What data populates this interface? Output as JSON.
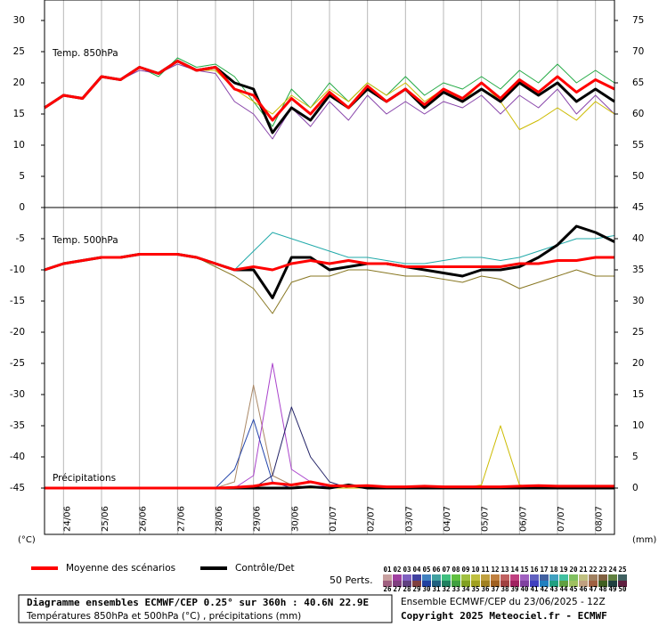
{
  "chart_data": {
    "type": "line",
    "annotations": [
      "Temp. 850hPa",
      "Temp. 500hPa",
      "Précipitations"
    ],
    "y_unit": "(°C)",
    "y2_unit": "(mm)",
    "x": [
      0,
      12,
      24,
      36,
      48,
      60,
      72,
      84,
      96,
      108,
      120,
      132,
      144,
      156,
      168,
      180,
      192,
      204,
      216,
      228,
      240,
      252,
      264,
      276,
      288,
      300,
      312,
      324,
      336,
      348,
      360
    ],
    "xlim": [
      0,
      360
    ],
    "xticks": [
      {
        "value": 12,
        "label": "24/06"
      },
      {
        "value": 36,
        "label": "25/06"
      },
      {
        "value": 60,
        "label": "26/06"
      },
      {
        "value": 84,
        "label": "27/06"
      },
      {
        "value": 108,
        "label": "28/06"
      },
      {
        "value": 132,
        "label": "29/06"
      },
      {
        "value": 156,
        "label": "30/06"
      },
      {
        "value": 180,
        "label": "01/07"
      },
      {
        "value": 204,
        "label": "02/07"
      },
      {
        "value": 228,
        "label": "03/07"
      },
      {
        "value": 252,
        "label": "04/07"
      },
      {
        "value": 276,
        "label": "05/07"
      },
      {
        "value": 300,
        "label": "06/07"
      },
      {
        "value": 324,
        "label": "07/07"
      },
      {
        "value": 348,
        "label": "08/07"
      }
    ],
    "ylim": [
      -52,
      33
    ],
    "yticks": [
      30,
      25,
      20,
      15,
      10,
      5,
      0,
      -5,
      -10,
      -15,
      -20,
      -25,
      -30,
      -35,
      -40,
      -45
    ],
    "y2lim": [
      -7,
      78
    ],
    "y2ticks": [
      75,
      70,
      65,
      60,
      55,
      50,
      45,
      40,
      35,
      30,
      25,
      20,
      15,
      10,
      5,
      0
    ],
    "grid": true,
    "legend": [
      {
        "name": "Moyenne des scénarios",
        "color": "#ff0000"
      },
      {
        "name": "Contrôle/Det",
        "color": "#000000"
      }
    ],
    "members_label": "50 Perts.",
    "members": [
      {
        "name": "01",
        "color": "#c8a0a0"
      },
      {
        "name": "02",
        "color": "#a040a0"
      },
      {
        "name": "03",
        "color": "#8060c0"
      },
      {
        "name": "04",
        "color": "#4040a0"
      },
      {
        "name": "05",
        "color": "#4080c0"
      },
      {
        "name": "06",
        "color": "#40a0a0"
      },
      {
        "name": "07",
        "color": "#40c080"
      },
      {
        "name": "08",
        "color": "#60c040"
      },
      {
        "name": "09",
        "color": "#a0c040"
      },
      {
        "name": "10",
        "color": "#c0c040"
      },
      {
        "name": "11",
        "color": "#c0a040"
      },
      {
        "name": "12",
        "color": "#c08040"
      },
      {
        "name": "13",
        "color": "#c06060"
      },
      {
        "name": "14",
        "color": "#c04080"
      },
      {
        "name": "15",
        "color": "#a060c0"
      },
      {
        "name": "16",
        "color": "#6060c0"
      },
      {
        "name": "17",
        "color": "#4060a0"
      },
      {
        "name": "18",
        "color": "#40a0c0"
      },
      {
        "name": "19",
        "color": "#40c0a0"
      },
      {
        "name": "20",
        "color": "#80c060"
      },
      {
        "name": "21",
        "color": "#c0c080"
      },
      {
        "name": "22",
        "color": "#a08060"
      },
      {
        "name": "23",
        "color": "#806040"
      },
      {
        "name": "24",
        "color": "#608040"
      },
      {
        "name": "25",
        "color": "#406060"
      },
      {
        "name": "26",
        "color": "#a06080"
      },
      {
        "name": "27",
        "color": "#804080"
      },
      {
        "name": "28",
        "color": "#604080"
      },
      {
        "name": "29",
        "color": "#804040"
      },
      {
        "name": "30",
        "color": "#2040a0"
      },
      {
        "name": "31",
        "color": "#206080"
      },
      {
        "name": "32",
        "color": "#208060"
      },
      {
        "name": "33",
        "color": "#40a040"
      },
      {
        "name": "34",
        "color": "#80a020"
      },
      {
        "name": "35",
        "color": "#a0a020"
      },
      {
        "name": "36",
        "color": "#a08020"
      },
      {
        "name": "37",
        "color": "#a06020"
      },
      {
        "name": "38",
        "color": "#a04040"
      },
      {
        "name": "39",
        "color": "#a02060"
      },
      {
        "name": "40",
        "color": "#8040a0"
      },
      {
        "name": "41",
        "color": "#4040c0"
      },
      {
        "name": "42",
        "color": "#2080c0"
      },
      {
        "name": "43",
        "color": "#20a080"
      },
      {
        "name": "44",
        "color": "#60a040"
      },
      {
        "name": "45",
        "color": "#a0c060"
      },
      {
        "name": "46",
        "color": "#c0a080"
      },
      {
        "name": "47",
        "color": "#a06040"
      },
      {
        "name": "48",
        "color": "#406020"
      },
      {
        "name": "49",
        "color": "#204040"
      },
      {
        "name": "50",
        "color": "#602040"
      }
    ],
    "series": [
      {
        "color": "#22aa44",
        "width": 1,
        "values": [
          16,
          18,
          17.5,
          21,
          20.5,
          22.5,
          21,
          24,
          22.5,
          23,
          21,
          17,
          13,
          19,
          16,
          20,
          17,
          20,
          18,
          21,
          18,
          20,
          19,
          21,
          19,
          22,
          20,
          23,
          20,
          22,
          20
        ]
      },
      {
        "color": "#8844aa",
        "width": 1,
        "values": [
          16,
          18,
          17.5,
          21,
          20.5,
          22,
          21.5,
          23,
          22,
          21.5,
          17,
          15,
          11,
          16,
          13,
          17,
          14,
          18,
          15,
          17,
          15,
          17,
          16,
          18,
          15,
          18,
          16,
          19,
          15,
          18,
          15
        ]
      },
      {
        "color": "#ccbb00",
        "width": 1,
        "values": [
          16,
          18,
          17.5,
          21,
          20.5,
          22.5,
          21.5,
          23.5,
          22,
          22,
          19,
          17,
          15,
          18,
          16,
          19,
          17,
          20,
          18,
          20,
          17,
          19,
          17,
          20,
          17,
          12.5,
          14,
          16,
          14,
          17,
          15
        ]
      },
      {
        "color": "#000000",
        "width": 3,
        "values": [
          16,
          18,
          17.5,
          21,
          20.5,
          22.5,
          21.5,
          23.5,
          22,
          22.5,
          20,
          19,
          12,
          16,
          14,
          18,
          16,
          19,
          17,
          19,
          16,
          18.5,
          17,
          19,
          17,
          20,
          18,
          20,
          17,
          19,
          17
        ]
      },
      {
        "color": "#ff0000",
        "width": 3,
        "values": [
          16,
          18,
          17.5,
          21,
          20.5,
          22.5,
          21.5,
          23.5,
          22,
          22.5,
          19,
          18,
          14,
          17.5,
          15,
          18.5,
          16,
          19.5,
          17,
          19,
          16.5,
          19,
          17.5,
          20,
          17.5,
          20.5,
          18.5,
          21,
          18.5,
          20.5,
          19
        ]
      },
      {
        "color": "#22aaaa",
        "width": 1,
        "values": [
          -10,
          -9,
          -8.5,
          -8,
          -8,
          -7.5,
          -7.5,
          -7.5,
          -8,
          -9,
          -10,
          -7,
          -4,
          -5,
          -6,
          -7,
          -8,
          -8,
          -8.5,
          -9,
          -9,
          -8.5,
          -8,
          -8,
          -8.5,
          -8,
          -7,
          -6,
          -5,
          -5,
          -4.5
        ]
      },
      {
        "color": "#887722",
        "width": 1,
        "values": [
          -10,
          -9,
          -8.5,
          -8,
          -8,
          -7.5,
          -7.5,
          -7.5,
          -8,
          -9.5,
          -11,
          -13,
          -17,
          -12,
          -11,
          -11,
          -10,
          -10,
          -10.5,
          -11,
          -11,
          -11.5,
          -12,
          -11,
          -11.5,
          -13,
          -12,
          -11,
          -10,
          -11,
          -11
        ]
      },
      {
        "color": "#000000",
        "width": 3,
        "values": [
          -10,
          -9,
          -8.5,
          -8,
          -8,
          -7.5,
          -7.5,
          -7.5,
          -8,
          -9,
          -10,
          -10,
          -14.5,
          -8,
          -8,
          -10,
          -9.5,
          -9,
          -9,
          -9.5,
          -10,
          -10.5,
          -11,
          -10,
          -10,
          -9.5,
          -8,
          -6,
          -3,
          -4,
          -5.5
        ]
      },
      {
        "color": "#ff0000",
        "width": 3,
        "values": [
          -10,
          -9,
          -8.5,
          -8,
          -8,
          -7.5,
          -7.5,
          -7.5,
          -8,
          -9,
          -10,
          -9.5,
          -10,
          -9,
          -8.5,
          -9,
          -8.5,
          -9,
          -9,
          -9.5,
          -9.5,
          -9.5,
          -9.5,
          -9.5,
          -9.5,
          -9,
          -9,
          -8.5,
          -8.5,
          -8,
          -8
        ]
      },
      {
        "color": "#aa8866",
        "width": 1,
        "axis": "y2",
        "values": [
          0,
          0,
          0,
          0,
          0,
          0,
          0,
          0,
          0,
          0,
          1,
          16.5,
          2,
          0.5,
          0,
          0,
          0,
          0,
          0,
          0,
          0,
          0,
          0,
          0,
          0,
          0,
          0,
          0,
          0,
          0,
          0
        ]
      },
      {
        "color": "#aa44cc",
        "width": 1,
        "axis": "y2",
        "values": [
          0,
          0,
          0,
          0,
          0,
          0,
          0,
          0,
          0,
          0,
          0,
          2,
          20,
          3,
          1,
          0,
          0,
          0,
          0,
          0,
          0,
          0,
          0,
          0,
          0,
          0,
          0,
          0,
          0,
          0,
          0
        ]
      },
      {
        "color": "#2244aa",
        "width": 1,
        "axis": "y2",
        "values": [
          0,
          0,
          0,
          0,
          0,
          0,
          0,
          0,
          0,
          0,
          3,
          11,
          1,
          0,
          0,
          0,
          0,
          0,
          0,
          0,
          0,
          0,
          0,
          0,
          0,
          0,
          0,
          0,
          0,
          0,
          0
        ]
      },
      {
        "color": "#222266",
        "width": 1,
        "axis": "y2",
        "values": [
          0,
          0,
          0,
          0,
          0,
          0,
          0,
          0,
          0,
          0,
          0,
          0,
          2,
          13,
          5,
          1,
          0,
          0,
          0,
          0,
          0,
          0,
          0,
          0,
          0,
          0,
          0,
          0,
          0,
          0,
          0
        ]
      },
      {
        "color": "#ccbb00",
        "width": 1,
        "axis": "y2",
        "values": [
          0,
          0,
          0,
          0,
          0,
          0,
          0,
          0,
          0,
          0,
          0,
          0,
          0,
          0,
          0,
          0,
          0,
          0,
          0,
          0,
          0,
          0,
          0,
          0.5,
          10,
          0.5,
          0,
          0,
          0,
          0,
          0
        ]
      },
      {
        "color": "#000000",
        "width": 3,
        "axis": "y2",
        "values": [
          0,
          0,
          0,
          0,
          0,
          0,
          0,
          0,
          0,
          0,
          0,
          0,
          0,
          0,
          0.2,
          0,
          0.5,
          0,
          0,
          0,
          0,
          0,
          0,
          0,
          0,
          0,
          0,
          0,
          0,
          0,
          0
        ]
      },
      {
        "color": "#ff0000",
        "width": 3,
        "axis": "y2",
        "values": [
          0,
          0,
          0,
          0,
          0,
          0,
          0,
          0,
          0,
          0,
          0.1,
          0.3,
          0.8,
          0.5,
          1,
          0.4,
          0.3,
          0.4,
          0.2,
          0.2,
          0.3,
          0.2,
          0.2,
          0.2,
          0.2,
          0.3,
          0.4,
          0.3,
          0.3,
          0.3,
          0.3
        ]
      }
    ],
    "footer": {
      "title": "Diagramme ensembles ECMWF/CEP 0.25° sur 360h : 40.6N 22.9E",
      "subtitle": "Températures 850hPa et 500hPa (°C) , précipitations (mm)",
      "run": "Ensemble ECMWF/CEP du 23/06/2025 - 12Z",
      "copyright": "Copyright 2025 Meteociel.fr - ECMWF"
    }
  }
}
